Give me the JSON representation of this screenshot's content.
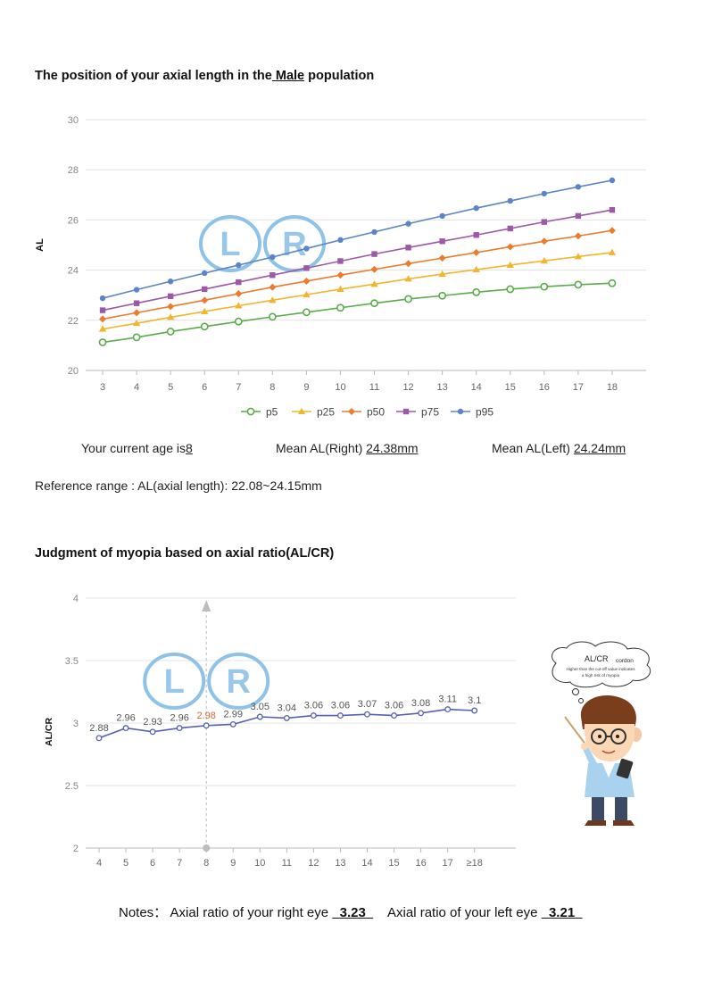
{
  "section1": {
    "title_prefix": "The position of your axial length in the",
    "gender": " Male",
    "title_suffix": " population"
  },
  "info": {
    "age_label": "Your current age is",
    "age_value": "8",
    "mean_right_label": "Mean AL(Right) ",
    "mean_right_value": "24.38mm",
    "mean_left_label": "Mean AL(Left) ",
    "mean_left_value": "24.24mm",
    "reference": "Reference range : AL(axial length): 22.08~24.15mm"
  },
  "section2": {
    "title": "Judgment of myopia based on axial ratio(AL/CR)"
  },
  "watermark": {
    "left": "L",
    "right": "R"
  },
  "cartoon": {
    "bubble_title": "AL/CR",
    "bubble_title2": "cordon",
    "bubble_text1": "Higher than the cut-off value indicates",
    "bubble_text2": "a high risk of myopia"
  },
  "notes": {
    "label": "Notes：",
    "right_label": "Axial ratio of your right eye ",
    "right_value": "3.23",
    "left_label": "Axial ratio of your left eye ",
    "left_value": "3.21"
  },
  "colors": {
    "p5": "#5aac4a",
    "p25": "#f2b530",
    "p50": "#ed7b2e",
    "p75": "#9d59a8",
    "p95": "#5b85c6",
    "ratio_line": "#5561b4",
    "highlight": "#e0633a",
    "watermark": "#8fc2e8"
  },
  "chart_data": [
    {
      "type": "line",
      "title": "",
      "xlabel": "",
      "ylabel": "AL",
      "x": [
        3,
        4,
        5,
        6,
        7,
        8,
        9,
        10,
        11,
        12,
        13,
        14,
        15,
        16,
        17,
        18
      ],
      "ylim": [
        20,
        30
      ],
      "yticks": [
        20,
        22,
        24,
        26,
        28,
        30
      ],
      "grid": true,
      "legend": "bottom",
      "series": [
        {
          "name": "p5",
          "marker": "circle-open",
          "values": [
            21.12,
            21.32,
            21.55,
            21.75,
            21.95,
            22.14,
            22.32,
            22.5,
            22.68,
            22.85,
            22.98,
            23.12,
            23.24,
            23.34,
            23.42,
            23.48
          ]
        },
        {
          "name": "p25",
          "marker": "triangle",
          "values": [
            21.65,
            21.88,
            22.12,
            22.35,
            22.58,
            22.8,
            23.02,
            23.24,
            23.44,
            23.65,
            23.84,
            24.02,
            24.2,
            24.37,
            24.54,
            24.7
          ]
        },
        {
          "name": "p50",
          "marker": "diamond",
          "values": [
            22.05,
            22.3,
            22.55,
            22.8,
            23.06,
            23.32,
            23.56,
            23.8,
            24.03,
            24.26,
            24.48,
            24.7,
            24.93,
            25.15,
            25.36,
            25.58
          ]
        },
        {
          "name": "p75",
          "marker": "square",
          "values": [
            22.4,
            22.68,
            22.96,
            23.24,
            23.52,
            23.8,
            24.08,
            24.36,
            24.64,
            24.9,
            25.15,
            25.4,
            25.66,
            25.92,
            26.16,
            26.4
          ]
        },
        {
          "name": "p95",
          "marker": "circle",
          "values": [
            22.88,
            23.22,
            23.55,
            23.88,
            24.2,
            24.52,
            24.86,
            25.2,
            25.52,
            25.85,
            26.16,
            26.47,
            26.76,
            27.05,
            27.32,
            27.58
          ]
        }
      ]
    },
    {
      "type": "line",
      "title": "",
      "xlabel": "",
      "ylabel": "AL/CR",
      "categories": [
        "4",
        "5",
        "6",
        "7",
        "8",
        "9",
        "10",
        "11",
        "12",
        "13",
        "14",
        "15",
        "16",
        "17",
        "≥18"
      ],
      "ylim": [
        2,
        4
      ],
      "yticks": [
        "2",
        "2.5",
        "3",
        "3.5",
        "4"
      ],
      "highlight_category": "8",
      "grid": true,
      "series": [
        {
          "values": [
            2.88,
            2.96,
            2.93,
            2.96,
            2.98,
            2.99,
            3.05,
            3.04,
            3.06,
            3.06,
            3.07,
            3.06,
            3.08,
            3.11,
            3.1
          ]
        }
      ]
    }
  ]
}
